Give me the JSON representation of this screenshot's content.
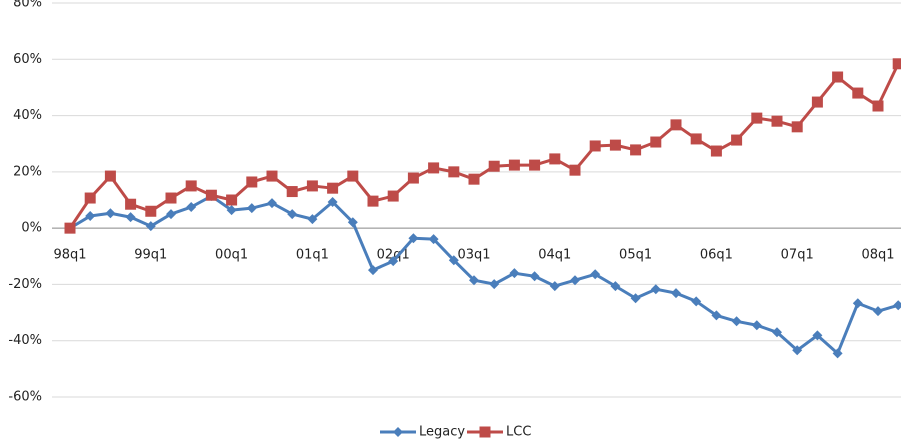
{
  "chart_data": {
    "type": "line",
    "categories": [
      "98q1",
      null,
      null,
      null,
      "99q1",
      null,
      null,
      null,
      "00q1",
      null,
      null,
      null,
      "01q1",
      null,
      null,
      null,
      "02q1",
      null,
      null,
      null,
      "03q1",
      null,
      null,
      null,
      "04q1",
      null,
      null,
      null,
      "05q1",
      null,
      null,
      null,
      "06q1",
      null,
      null,
      null,
      "07q1",
      null,
      null,
      null,
      "08q1",
      null
    ],
    "series": [
      {
        "name": "Legacy",
        "color": "#4a7ebb",
        "marker": "diamond",
        "values": [
          0,
          4.3,
          5.3,
          3.9,
          0.7,
          5,
          7.5,
          11.4,
          6.4,
          7.1,
          8.9,
          5,
          3.2,
          9.3,
          2.1,
          -14.9,
          -11.7,
          -3.6,
          -3.9,
          -11.4,
          -18.5,
          -19.9,
          -16,
          -17.1,
          -20.6,
          -18.5,
          -16.4,
          -20.6,
          -24.9,
          -21.7,
          -23.1,
          -26,
          -31,
          -33.1,
          -34.5,
          -37,
          -43.4,
          -38.1,
          -44.5,
          -26.7,
          -29.5,
          -27.4
        ]
      },
      {
        "name": "LCC",
        "color": "#be4b48",
        "marker": "square",
        "values": [
          0,
          10.7,
          18.5,
          8.5,
          6,
          10.7,
          15,
          11.7,
          10,
          16.4,
          18.5,
          13,
          15,
          14.2,
          18.5,
          9.6,
          11.4,
          17.8,
          21.4,
          20,
          17.4,
          22,
          22.4,
          22.4,
          24.6,
          20.6,
          29.2,
          29.5,
          27.8,
          30.6,
          36.7,
          31.7,
          27.4,
          31.3,
          39.1,
          38,
          36,
          44.8,
          53.7,
          48,
          43.4,
          58.4
        ]
      }
    ],
    "ylim": [
      -60,
      80
    ],
    "yticks": [
      {
        "value": -60,
        "label": "-60%"
      },
      {
        "value": -40,
        "label": "-40%"
      },
      {
        "value": -20,
        "label": "-20%"
      },
      {
        "value": 0,
        "label": "0%"
      },
      {
        "value": 20,
        "label": "20%"
      },
      {
        "value": 40,
        "label": "40%"
      },
      {
        "value": 60,
        "label": "60%"
      },
      {
        "value": 80,
        "label": "80%"
      }
    ],
    "grid": true,
    "legend": "bottom"
  }
}
